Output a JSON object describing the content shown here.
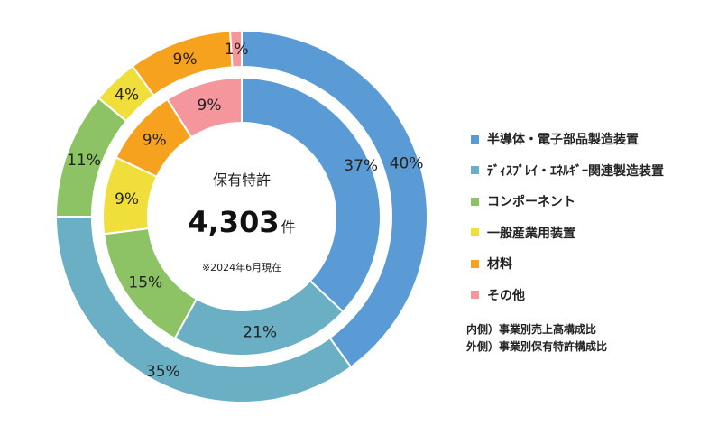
{
  "chart_data": {
    "type": "pie",
    "center": {
      "title": "保有特許",
      "number": "4,303",
      "unit": "件",
      "note": "※2024年6月現在"
    },
    "categories": [
      "半導体・電子部品製造装置",
      "ﾃﾞｨｽﾌﾟﾚｲ・ｴﾈﾙｷﾞｰ関連製造装置",
      "コンポーネント",
      "一般産業用装置",
      "材料",
      "その他"
    ],
    "colors": [
      "#5b9bd5",
      "#6aafc4",
      "#8dc265",
      "#f0de3a",
      "#f7a21e",
      "#f5969c"
    ],
    "series": [
      {
        "name": "事業別保有特許構成比",
        "ring": "outer",
        "values": [
          40,
          35,
          11,
          4,
          9,
          1
        ],
        "labels": [
          "40%",
          "35%",
          "11%",
          "4%",
          "9%",
          "1%"
        ]
      },
      {
        "name": "事業別売上高構成比",
        "ring": "inner",
        "values": [
          37,
          21,
          15,
          9,
          9,
          9
        ],
        "labels": [
          "37%",
          "21%",
          "15%",
          "9%",
          "9%",
          "9%"
        ]
      }
    ],
    "notes": [
      "内側）事業別売上高構成比",
      "外側）事業別保有特許構成比"
    ]
  }
}
